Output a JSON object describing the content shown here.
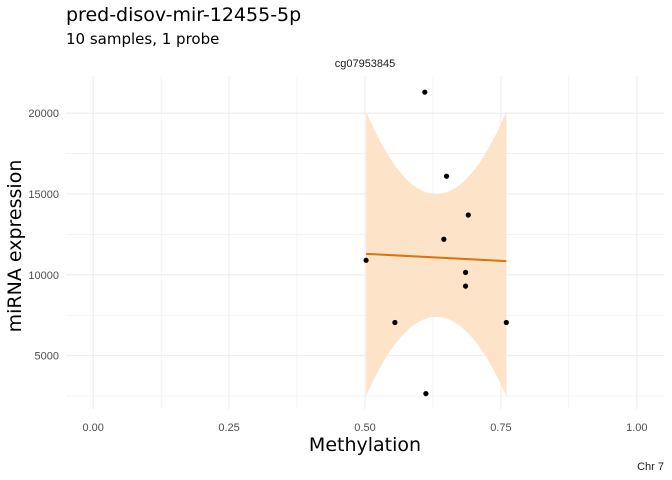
{
  "title": "pred-disov-mir-12455-5p",
  "subtitle": "10 samples, 1 probe",
  "caption": "Chr 7",
  "chart_data": {
    "type": "scatter",
    "facet_label": "cg07953845",
    "xlabel": "Methylation",
    "ylabel": "miRNA expression",
    "xlim": [
      -0.05,
      1.05
    ],
    "ylim": [
      1700,
      22300
    ],
    "x_ticks": [
      0.0,
      0.25,
      0.5,
      0.75,
      1.0
    ],
    "x_tick_labels": [
      "0.00",
      "0.25",
      "0.50",
      "0.75",
      "1.00"
    ],
    "y_ticks": [
      5000,
      10000,
      15000,
      20000
    ],
    "y_tick_labels": [
      "5000",
      "10000",
      "15000",
      "20000"
    ],
    "grid": true,
    "points": [
      {
        "x": 0.61,
        "y": 21300
      },
      {
        "x": 0.65,
        "y": 16100
      },
      {
        "x": 0.69,
        "y": 13700
      },
      {
        "x": 0.645,
        "y": 12200
      },
      {
        "x": 0.502,
        "y": 10900
      },
      {
        "x": 0.685,
        "y": 10150
      },
      {
        "x": 0.685,
        "y": 9300
      },
      {
        "x": 0.555,
        "y": 7050
      },
      {
        "x": 0.76,
        "y": 7050
      },
      {
        "x": 0.612,
        "y": 2650
      }
    ],
    "fit": {
      "x_range": [
        0.502,
        0.76
      ],
      "y_start": 11300,
      "y_end": 10850,
      "ci_upper_ends": 20100,
      "ci_upper_mid": 15000,
      "ci_lower_ends": 2500,
      "ci_lower_mid": 7400,
      "ci_mid_x": 0.631
    },
    "colors": {
      "point": "#000000",
      "fit_line": "#d9730d",
      "ci_ribbon": "#fde3c8",
      "grid": "#ebebeb"
    }
  }
}
